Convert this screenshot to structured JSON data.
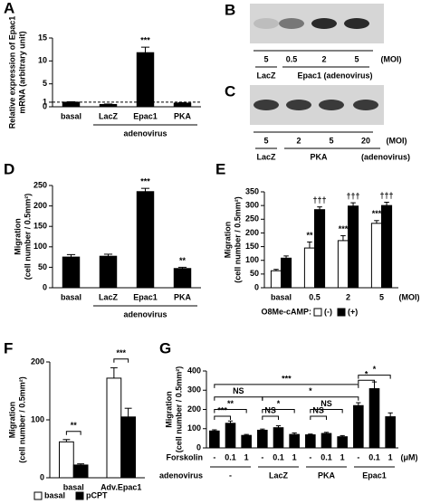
{
  "chart_data": [
    {
      "type": "bar",
      "panel": "A",
      "ylabel": [
        "Relative expression of Epac1",
        "mRNA (arbitrary unit)"
      ],
      "categories": [
        "basal",
        "LacZ",
        "Epac1",
        "PKA"
      ],
      "values": [
        1,
        0.5,
        11.8,
        0.8
      ],
      "errors": [
        0.1,
        0.1,
        1.2,
        0.1
      ],
      "significance": [
        null,
        null,
        "***",
        null
      ],
      "color": "#000000",
      "reference_line": 1,
      "xgroup": "adenovirus",
      "ylim": [
        0,
        15
      ],
      "yticks": [
        0,
        1,
        5,
        10,
        15
      ]
    },
    {
      "type": "bar",
      "panel": "D",
      "ylabel": [
        "Migration",
        "(cell number / 0.5mm²)"
      ],
      "categories": [
        "basal",
        "LacZ",
        "Epac1",
        "PKA"
      ],
      "values": [
        75,
        77,
        235,
        47
      ],
      "errors": [
        6,
        5,
        8,
        3
      ],
      "significance": [
        null,
        null,
        "***",
        "**"
      ],
      "color": "#000000",
      "xgroup": "adenovirus",
      "ylim": [
        0,
        250
      ],
      "yticks": [
        0,
        50,
        100,
        150,
        200,
        250
      ]
    },
    {
      "type": "bar",
      "panel": "E",
      "ylabel": [
        "Migration",
        "(cell number / 0.5mm²)"
      ],
      "categories": [
        "basal",
        "0.5",
        "2",
        "5"
      ],
      "xlabel": "(MOI)",
      "legend_title": "O8Me-cAMP:",
      "series": [
        {
          "name": "(-)",
          "color": "#ffffff",
          "values": [
            62,
            145,
            172,
            235
          ],
          "errors": [
            5,
            22,
            18,
            10
          ],
          "significance": [
            null,
            "**",
            "***",
            "***"
          ]
        },
        {
          "name": "(+)",
          "color": "#000000",
          "values": [
            108,
            285,
            298,
            300
          ],
          "errors": [
            8,
            10,
            12,
            12
          ],
          "significance": [
            null,
            "†††",
            "†††",
            "†††"
          ]
        }
      ],
      "ylim": [
        0,
        350
      ],
      "yticks": [
        0,
        50,
        100,
        150,
        200,
        250,
        300,
        350
      ]
    },
    {
      "type": "bar",
      "panel": "F",
      "ylabel": [
        "Migration",
        "(cell number / 0.5mm²)"
      ],
      "categories": [
        "basal",
        "Adv.Epac1"
      ],
      "series": [
        {
          "name": "basal",
          "color": "#ffffff",
          "values": [
            62,
            172
          ],
          "errors": [
            4,
            18
          ]
        },
        {
          "name": "pCPT",
          "color": "#000000",
          "values": [
            22,
            105
          ],
          "errors": [
            2,
            15
          ]
        }
      ],
      "brackets": [
        "**",
        "***"
      ],
      "ylim": [
        0,
        200
      ],
      "yticks": [
        0,
        100,
        200
      ]
    },
    {
      "type": "bar",
      "panel": "G",
      "ylabel": [
        "Migration",
        "(cell number / 0.5mm²)"
      ],
      "categories": [
        "-",
        "0.1",
        "1",
        "-",
        "0.1",
        "1",
        "-",
        "0.1",
        "1",
        "-",
        "0.1",
        "1"
      ],
      "values": [
        88,
        128,
        65,
        92,
        105,
        70,
        68,
        75,
        58,
        220,
        308,
        162
      ],
      "errors": [
        6,
        12,
        5,
        6,
        10,
        8,
        4,
        6,
        6,
        15,
        35,
        20
      ],
      "color": "#000000",
      "row_labels": [
        "Forskolin",
        "adenovirus"
      ],
      "unit": "(μM)",
      "groups": [
        "-",
        "LacZ",
        "PKA",
        "Epac1"
      ],
      "brackets": [
        "***",
        "**",
        "NS",
        "*",
        "NS",
        "NS",
        "*",
        "*",
        "NS",
        "*",
        "***"
      ],
      "ylim": [
        0,
        400
      ],
      "yticks": [
        0,
        100,
        200,
        300,
        400
      ]
    }
  ],
  "blots": [
    {
      "panel": "B",
      "doses": [
        5,
        0.5,
        2,
        5
      ],
      "unit": "(MOI)",
      "labels": [
        "LacZ",
        "Epac1 (adenovirus)"
      ]
    },
    {
      "panel": "C",
      "doses": [
        5,
        2,
        5,
        20
      ],
      "unit": "(MOI)",
      "labels": [
        "LacZ",
        "PKA",
        "(adenovirus)"
      ]
    }
  ]
}
